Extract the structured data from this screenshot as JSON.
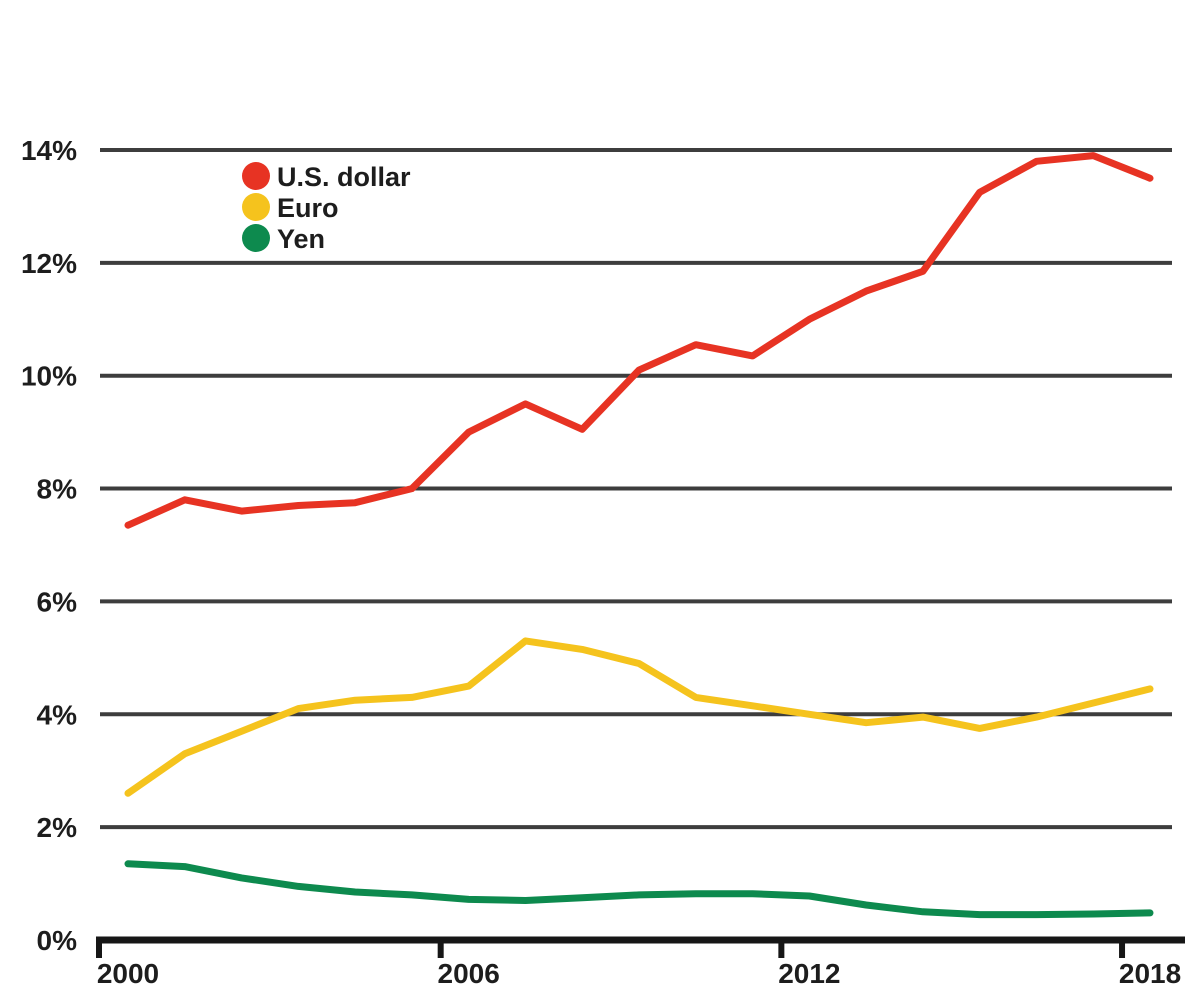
{
  "chart_data": {
    "type": "line",
    "title": "",
    "xlabel": "",
    "ylabel": "",
    "x": [
      2000,
      2001,
      2002,
      2003,
      2004,
      2005,
      2006,
      2007,
      2008,
      2009,
      2010,
      2011,
      2012,
      2013,
      2014,
      2015,
      2016,
      2017,
      2018
    ],
    "series": [
      {
        "name": "U.S. dollar",
        "color": "#e73323",
        "values": [
          7.35,
          7.8,
          7.6,
          7.7,
          7.75,
          8.0,
          9.0,
          9.5,
          9.05,
          10.1,
          10.55,
          10.35,
          11.0,
          11.5,
          11.85,
          13.25,
          13.8,
          13.9,
          13.5
        ]
      },
      {
        "name": "Euro",
        "color": "#f5c31d",
        "values": [
          2.6,
          3.3,
          3.7,
          4.1,
          4.25,
          4.3,
          4.5,
          5.3,
          5.15,
          4.9,
          4.3,
          4.15,
          4.0,
          3.85,
          3.95,
          3.75,
          3.95,
          4.2,
          4.45
        ]
      },
      {
        "name": "Yen",
        "color": "#0d8a4e",
        "values": [
          1.35,
          1.3,
          1.1,
          0.95,
          0.85,
          0.8,
          0.72,
          0.7,
          0.75,
          0.8,
          0.82,
          0.82,
          0.78,
          0.62,
          0.5,
          0.45,
          0.45,
          0.46,
          0.48
        ]
      }
    ],
    "ylim": [
      0,
      14
    ],
    "yticks": [
      0,
      2,
      4,
      6,
      8,
      10,
      12,
      14
    ],
    "ytick_labels": [
      "0%",
      "2%",
      "4%",
      "6%",
      "8%",
      "10%",
      "12%",
      "14%"
    ],
    "xticks": [
      2000,
      2006,
      2012,
      2018
    ],
    "xtick_labels": [
      "2000",
      "2006",
      "2012",
      "2018"
    ],
    "grid": "horizontal",
    "legend_position": "top-left-inside",
    "legend": {
      "items": [
        "U.S. dollar",
        "Euro",
        "Yen"
      ]
    }
  },
  "colors": {
    "grid": "#3d3d3d",
    "axis": "#161616",
    "text": "#1d1d1d",
    "background": "#ffffff"
  }
}
